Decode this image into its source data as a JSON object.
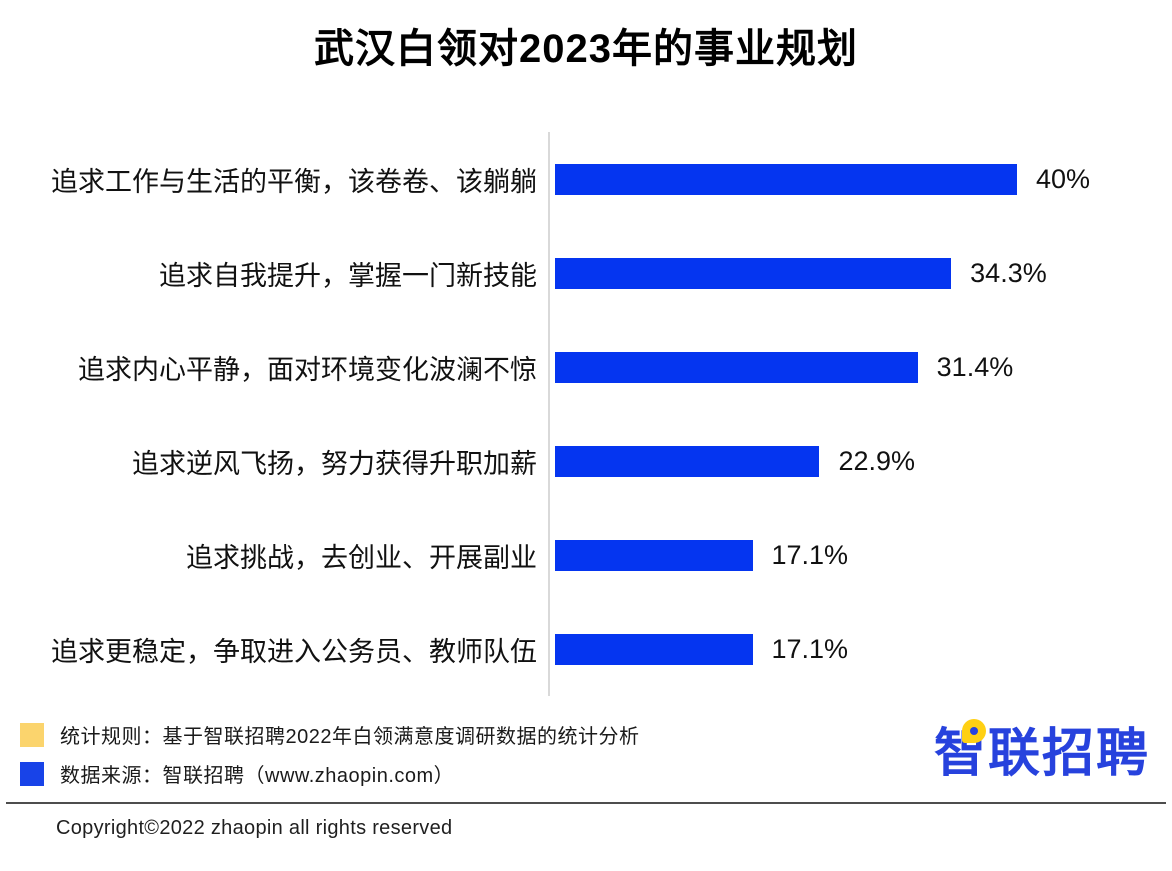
{
  "title": "武汉白领对2023年的事业规划",
  "chart_data": {
    "type": "bar",
    "orientation": "horizontal",
    "title": "武汉白领对2023年的事业规划",
    "categories": [
      "追求工作与生活的平衡，该卷卷、该躺躺",
      "追求自我提升，掌握一门新技能",
      "追求内心平静，面对环境变化波澜不惊",
      "追求逆风飞扬，努力获得升职加薪",
      "追求挑战，去创业、开展副业",
      "追求更稳定，争取进入公务员、教师队伍"
    ],
    "values": [
      40,
      34.3,
      31.4,
      22.9,
      17.1,
      17.1
    ],
    "value_labels": [
      "40%",
      "34.3%",
      "31.4%",
      "22.9%",
      "17.1%",
      "17.1%"
    ],
    "xmax": 40,
    "bar_color": "#0535f0",
    "axis_color": "#d9d9d9",
    "grid": false,
    "legend_position": "bottom-left"
  },
  "legend": {
    "items": [
      {
        "swatch_color": "#fbd46d",
        "label": "统计规则：基于智联招聘2022年白领满意度调研数据的统计分析"
      },
      {
        "swatch_color": "#1843e8",
        "label": "数据来源：智联招聘（www.zhaopin.com）"
      }
    ]
  },
  "logo": {
    "text": "智联招聘"
  },
  "footer": {
    "copyright": "Copyright©2022 zhaopin all rights reserved"
  }
}
